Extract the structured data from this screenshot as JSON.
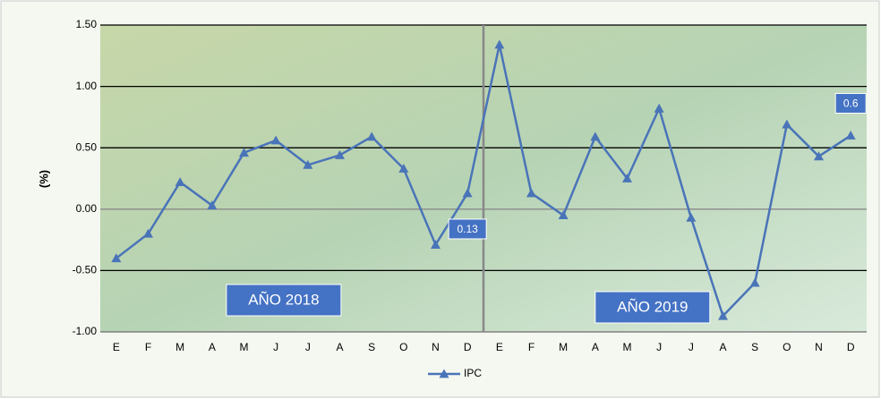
{
  "chart_data": {
    "type": "line",
    "y_label": "(%)",
    "categories": [
      "E",
      "F",
      "M",
      "A",
      "M",
      "J",
      "J",
      "A",
      "S",
      "O",
      "N",
      "D",
      "E",
      "F",
      "M",
      "A",
      "M",
      "J",
      "J",
      "A",
      "S",
      "O",
      "N",
      "D"
    ],
    "series": [
      {
        "name": "IPC",
        "color": "#4a74b8",
        "values": [
          -0.4,
          -0.2,
          0.22,
          0.03,
          0.46,
          0.56,
          0.36,
          0.44,
          0.59,
          0.33,
          -0.29,
          0.13,
          1.34,
          0.13,
          -0.05,
          0.59,
          0.25,
          0.82,
          -0.07,
          -0.87,
          -0.6,
          0.69,
          0.43,
          0.6
        ],
        "value_labels": [
          null,
          null,
          null,
          null,
          null,
          null,
          null,
          null,
          null,
          null,
          null,
          "0.13",
          null,
          null,
          null,
          null,
          null,
          null,
          null,
          null,
          null,
          null,
          null,
          "0.6"
        ]
      }
    ],
    "annotations": [
      "AÑO 2018",
      "AÑO 2019"
    ],
    "ylim": [
      -1.0,
      1.5
    ],
    "yticks": [
      {
        "value": 1.5,
        "label": "1.50"
      },
      {
        "value": 1.0,
        "label": "1.00"
      },
      {
        "value": 0.5,
        "label": "0.50"
      },
      {
        "value": 0.0,
        "label": "0.00"
      },
      {
        "value": -0.5,
        "label": "-0.50"
      },
      {
        "value": -1.0,
        "label": "-1.00"
      }
    ],
    "grid": true,
    "legend": "bottom"
  }
}
